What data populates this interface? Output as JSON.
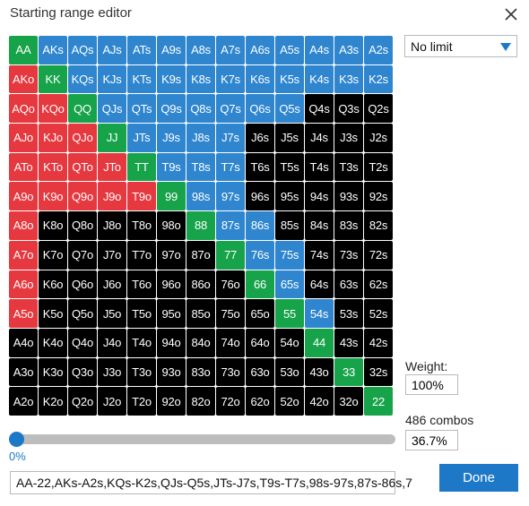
{
  "dialog": {
    "title": "Starting range editor"
  },
  "limit_select": {
    "value": "No limit"
  },
  "weight": {
    "label": "Weight:",
    "value": "100%"
  },
  "combos": {
    "label": "486 combos",
    "percent": "36.7%"
  },
  "slider": {
    "value_label": "0%",
    "position": 0
  },
  "range_text": "AA-22,AKs-A2s,KQs-K2s,QJs-Q5s,JTs-J7s,T9s-T7s,98s-97s,87s-86s,7",
  "done_label": "Done",
  "colors": {
    "red": "#e5383f",
    "blue": "#2f86cf",
    "green": "#17a34a",
    "black": "#000000",
    "accent": "#1e78c8"
  },
  "grid": [
    [
      [
        "AA",
        "green"
      ],
      [
        "AKs",
        "blue"
      ],
      [
        "AQs",
        "blue"
      ],
      [
        "AJs",
        "blue"
      ],
      [
        "ATs",
        "blue"
      ],
      [
        "A9s",
        "blue"
      ],
      [
        "A8s",
        "blue"
      ],
      [
        "A7s",
        "blue"
      ],
      [
        "A6s",
        "blue"
      ],
      [
        "A5s",
        "blue"
      ],
      [
        "A4s",
        "blue"
      ],
      [
        "A3s",
        "blue"
      ],
      [
        "A2s",
        "blue"
      ]
    ],
    [
      [
        "AKo",
        "red"
      ],
      [
        "KK",
        "green"
      ],
      [
        "KQs",
        "blue"
      ],
      [
        "KJs",
        "blue"
      ],
      [
        "KTs",
        "blue"
      ],
      [
        "K9s",
        "blue"
      ],
      [
        "K8s",
        "blue"
      ],
      [
        "K7s",
        "blue"
      ],
      [
        "K6s",
        "blue"
      ],
      [
        "K5s",
        "blue"
      ],
      [
        "K4s",
        "blue"
      ],
      [
        "K3s",
        "blue"
      ],
      [
        "K2s",
        "blue"
      ]
    ],
    [
      [
        "AQo",
        "red"
      ],
      [
        "KQo",
        "red"
      ],
      [
        "QQ",
        "green"
      ],
      [
        "QJs",
        "blue"
      ],
      [
        "QTs",
        "blue"
      ],
      [
        "Q9s",
        "blue"
      ],
      [
        "Q8s",
        "blue"
      ],
      [
        "Q7s",
        "blue"
      ],
      [
        "Q6s",
        "blue"
      ],
      [
        "Q5s",
        "blue"
      ],
      [
        "Q4s",
        "black"
      ],
      [
        "Q3s",
        "black"
      ],
      [
        "Q2s",
        "black"
      ]
    ],
    [
      [
        "AJo",
        "red"
      ],
      [
        "KJo",
        "red"
      ],
      [
        "QJo",
        "red"
      ],
      [
        "JJ",
        "green"
      ],
      [
        "JTs",
        "blue"
      ],
      [
        "J9s",
        "blue"
      ],
      [
        "J8s",
        "blue"
      ],
      [
        "J7s",
        "blue"
      ],
      [
        "J6s",
        "black"
      ],
      [
        "J5s",
        "black"
      ],
      [
        "J4s",
        "black"
      ],
      [
        "J3s",
        "black"
      ],
      [
        "J2s",
        "black"
      ]
    ],
    [
      [
        "ATo",
        "red"
      ],
      [
        "KTo",
        "red"
      ],
      [
        "QTo",
        "red"
      ],
      [
        "JTo",
        "red"
      ],
      [
        "TT",
        "green"
      ],
      [
        "T9s",
        "blue"
      ],
      [
        "T8s",
        "blue"
      ],
      [
        "T7s",
        "blue"
      ],
      [
        "T6s",
        "black"
      ],
      [
        "T5s",
        "black"
      ],
      [
        "T4s",
        "black"
      ],
      [
        "T3s",
        "black"
      ],
      [
        "T2s",
        "black"
      ]
    ],
    [
      [
        "A9o",
        "red"
      ],
      [
        "K9o",
        "red"
      ],
      [
        "Q9o",
        "red"
      ],
      [
        "J9o",
        "red"
      ],
      [
        "T9o",
        "red"
      ],
      [
        "99",
        "green"
      ],
      [
        "98s",
        "blue"
      ],
      [
        "97s",
        "blue"
      ],
      [
        "96s",
        "black"
      ],
      [
        "95s",
        "black"
      ],
      [
        "94s",
        "black"
      ],
      [
        "93s",
        "black"
      ],
      [
        "92s",
        "black"
      ]
    ],
    [
      [
        "A8o",
        "red"
      ],
      [
        "K8o",
        "black"
      ],
      [
        "Q8o",
        "black"
      ],
      [
        "J8o",
        "black"
      ],
      [
        "T8o",
        "black"
      ],
      [
        "98o",
        "black"
      ],
      [
        "88",
        "green"
      ],
      [
        "87s",
        "blue"
      ],
      [
        "86s",
        "blue"
      ],
      [
        "85s",
        "black"
      ],
      [
        "84s",
        "black"
      ],
      [
        "83s",
        "black"
      ],
      [
        "82s",
        "black"
      ]
    ],
    [
      [
        "A7o",
        "red"
      ],
      [
        "K7o",
        "black"
      ],
      [
        "Q7o",
        "black"
      ],
      [
        "J7o",
        "black"
      ],
      [
        "T7o",
        "black"
      ],
      [
        "97o",
        "black"
      ],
      [
        "87o",
        "black"
      ],
      [
        "77",
        "green"
      ],
      [
        "76s",
        "blue"
      ],
      [
        "75s",
        "blue"
      ],
      [
        "74s",
        "black"
      ],
      [
        "73s",
        "black"
      ],
      [
        "72s",
        "black"
      ]
    ],
    [
      [
        "A6o",
        "red"
      ],
      [
        "K6o",
        "black"
      ],
      [
        "Q6o",
        "black"
      ],
      [
        "J6o",
        "black"
      ],
      [
        "T6o",
        "black"
      ],
      [
        "96o",
        "black"
      ],
      [
        "86o",
        "black"
      ],
      [
        "76o",
        "black"
      ],
      [
        "66",
        "green"
      ],
      [
        "65s",
        "blue"
      ],
      [
        "64s",
        "black"
      ],
      [
        "63s",
        "black"
      ],
      [
        "62s",
        "black"
      ]
    ],
    [
      [
        "A5o",
        "red"
      ],
      [
        "K5o",
        "black"
      ],
      [
        "Q5o",
        "black"
      ],
      [
        "J5o",
        "black"
      ],
      [
        "T5o",
        "black"
      ],
      [
        "95o",
        "black"
      ],
      [
        "85o",
        "black"
      ],
      [
        "75o",
        "black"
      ],
      [
        "65o",
        "black"
      ],
      [
        "55",
        "green"
      ],
      [
        "54s",
        "blue"
      ],
      [
        "53s",
        "black"
      ],
      [
        "52s",
        "black"
      ]
    ],
    [
      [
        "A4o",
        "black"
      ],
      [
        "K4o",
        "black"
      ],
      [
        "Q4o",
        "black"
      ],
      [
        "J4o",
        "black"
      ],
      [
        "T4o",
        "black"
      ],
      [
        "94o",
        "black"
      ],
      [
        "84o",
        "black"
      ],
      [
        "74o",
        "black"
      ],
      [
        "64o",
        "black"
      ],
      [
        "54o",
        "black"
      ],
      [
        "44",
        "green"
      ],
      [
        "43s",
        "black"
      ],
      [
        "42s",
        "black"
      ]
    ],
    [
      [
        "A3o",
        "black"
      ],
      [
        "K3o",
        "black"
      ],
      [
        "Q3o",
        "black"
      ],
      [
        "J3o",
        "black"
      ],
      [
        "T3o",
        "black"
      ],
      [
        "93o",
        "black"
      ],
      [
        "83o",
        "black"
      ],
      [
        "73o",
        "black"
      ],
      [
        "63o",
        "black"
      ],
      [
        "53o",
        "black"
      ],
      [
        "43o",
        "black"
      ],
      [
        "33",
        "green"
      ],
      [
        "32s",
        "black"
      ]
    ],
    [
      [
        "A2o",
        "black"
      ],
      [
        "K2o",
        "black"
      ],
      [
        "Q2o",
        "black"
      ],
      [
        "J2o",
        "black"
      ],
      [
        "T2o",
        "black"
      ],
      [
        "92o",
        "black"
      ],
      [
        "82o",
        "black"
      ],
      [
        "72o",
        "black"
      ],
      [
        "62o",
        "black"
      ],
      [
        "52o",
        "black"
      ],
      [
        "42o",
        "black"
      ],
      [
        "32o",
        "black"
      ],
      [
        "22",
        "green"
      ]
    ]
  ]
}
